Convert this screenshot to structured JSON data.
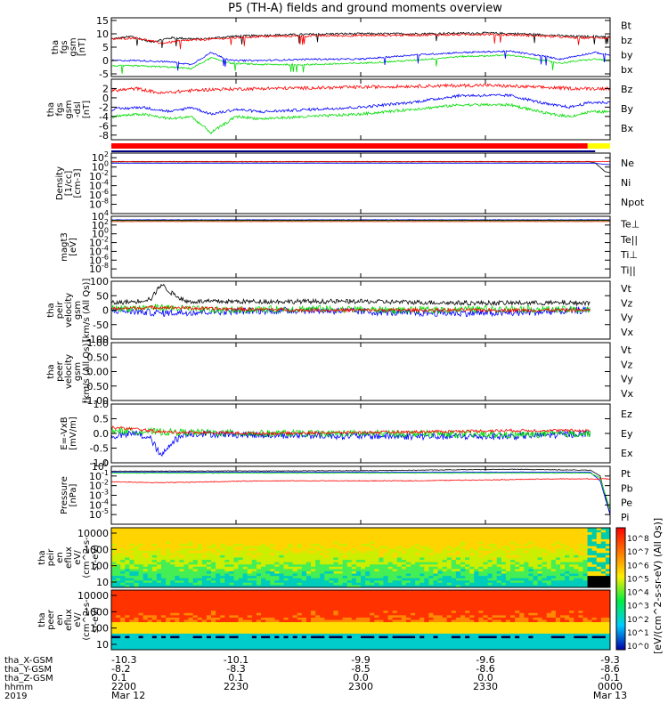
{
  "title": "P5 (TH-A) fields and ground moments overview",
  "colors": {
    "black": "#000000",
    "red": "#ff0000",
    "green": "#00dd00",
    "blue": "#0000ff",
    "yellow": "#ffff00"
  },
  "chart_data": [
    {
      "id": "fgs",
      "type": "line",
      "ylabel": [
        "tha",
        "fgs",
        "gsm",
        "[nT]"
      ],
      "ylim": [
        -6,
        16
      ],
      "yticks": [
        -5,
        0,
        5,
        10,
        15
      ],
      "scale": "linear",
      "legend": [
        {
          "label": "Bt",
          "color": "#000000"
        },
        {
          "label": "bz",
          "color": "#ff0000"
        },
        {
          "label": "by",
          "color": "#00dd00"
        },
        {
          "label": "bx",
          "color": "#0000ff"
        }
      ],
      "series": [
        {
          "color": "#000000",
          "noise": 0.4,
          "x": [
            0,
            0.04,
            0.08,
            0.12,
            0.18,
            0.24,
            0.32,
            0.45,
            0.6,
            0.75,
            0.82,
            0.88,
            0.93,
            0.97,
            1
          ],
          "y": [
            8,
            9,
            7,
            8.5,
            8,
            9,
            9.5,
            10,
            10,
            10.3,
            10,
            9.5,
            9,
            9,
            9
          ]
        },
        {
          "color": "#ff0000",
          "noise": 0.4,
          "x": [
            0,
            0.05,
            0.1,
            0.15,
            0.2,
            0.3,
            0.45,
            0.6,
            0.75,
            0.82,
            0.88,
            0.93,
            0.97,
            1
          ],
          "y": [
            8,
            8.5,
            6.5,
            7.5,
            8,
            9,
            9.3,
            9.5,
            9.8,
            9.5,
            9,
            8.5,
            8.5,
            8.5
          ]
        },
        {
          "color": "#00dd00",
          "noise": 0.3,
          "x": [
            0,
            0.05,
            0.12,
            0.16,
            0.2,
            0.24,
            0.3,
            0.4,
            0.5,
            0.6,
            0.7,
            0.8,
            0.87,
            0.9,
            0.94,
            0.97,
            1
          ],
          "y": [
            -2,
            -2,
            -2.5,
            -3,
            1,
            -1,
            -1.5,
            -1.5,
            -1,
            0,
            1.5,
            2,
            0,
            -1,
            0,
            0.5,
            0
          ]
        },
        {
          "color": "#0000ff",
          "noise": 0.3,
          "x": [
            0,
            0.05,
            0.12,
            0.16,
            0.2,
            0.24,
            0.3,
            0.4,
            0.5,
            0.6,
            0.7,
            0.8,
            0.87,
            0.9,
            0.94,
            0.97,
            1
          ],
          "y": [
            0,
            0,
            -0.5,
            -1.5,
            3,
            0,
            0,
            0.5,
            0.5,
            2,
            3,
            3.5,
            1.5,
            0.5,
            2,
            3,
            2
          ]
        }
      ]
    },
    {
      "id": "fgs-gse",
      "type": "line",
      "ylabel": [
        "tha",
        "fgs",
        "gsm",
        "-dsl",
        "[nT]"
      ],
      "ylim": [
        -9,
        4
      ],
      "yticks": [
        -8,
        -6,
        -4,
        -2,
        0,
        2
      ],
      "scale": "linear",
      "legend": [
        {
          "label": "Bz",
          "color": "#ff0000"
        },
        {
          "label": "By",
          "color": "#00dd00"
        },
        {
          "label": "Bx",
          "color": "#0000ff"
        }
      ],
      "series": [
        {
          "color": "#ff0000",
          "noise": 0.35,
          "x": [
            0,
            0.05,
            0.1,
            0.15,
            0.2,
            0.3,
            0.45,
            0.6,
            0.75,
            0.85,
            0.93,
            1
          ],
          "y": [
            1.5,
            2,
            1,
            1.5,
            1.8,
            2,
            2.2,
            2.5,
            2.7,
            2.3,
            2,
            2
          ]
        },
        {
          "color": "#0000ff",
          "noise": 0.3,
          "x": [
            0,
            0.06,
            0.12,
            0.16,
            0.2,
            0.25,
            0.3,
            0.4,
            0.5,
            0.6,
            0.7,
            0.8,
            0.88,
            0.92,
            0.96,
            1
          ],
          "y": [
            -2.5,
            -2,
            -3,
            -2,
            -3.5,
            -2.5,
            -3,
            -2.5,
            -2,
            -1,
            0.5,
            0.5,
            -1.5,
            -2,
            -1,
            -1
          ]
        },
        {
          "color": "#00dd00",
          "noise": 0.3,
          "x": [
            0,
            0.06,
            0.12,
            0.16,
            0.2,
            0.25,
            0.3,
            0.4,
            0.5,
            0.6,
            0.7,
            0.8,
            0.88,
            0.92,
            0.96,
            1
          ],
          "y": [
            -4,
            -3.5,
            -4.5,
            -4,
            -7.5,
            -4,
            -4.5,
            -4,
            -3.5,
            -2.5,
            -1.5,
            -1.5,
            -3.5,
            -4,
            -3,
            -3
          ]
        }
      ]
    },
    {
      "id": "density",
      "type": "line",
      "ylabel": [
        "Density",
        "[1/cc]",
        "[cm-3]"
      ],
      "ylim": [
        -10,
        3
      ],
      "yticks": [
        -8,
        -6,
        -4,
        -2,
        0,
        2
      ],
      "tick_prefix": "10",
      "scale": "log",
      "legend": [
        {
          "label": "Ne",
          "color": "#ff0000"
        },
        {
          "label": "Ni",
          "color": "#000000"
        },
        {
          "label": "Npot",
          "color": "#0000ff"
        }
      ],
      "series": [
        {
          "color": "#0000ff",
          "noise": 0.03,
          "x": [
            0,
            0.97,
            1
          ],
          "y": [
            0.8,
            0.8,
            0.5
          ]
        },
        {
          "color": "#000000",
          "noise": 0.03,
          "x": [
            0,
            0.96,
            0.97,
            0.99,
            1
          ],
          "y": [
            1.1,
            1.1,
            0.9,
            -1,
            -1.2
          ]
        },
        {
          "color": "#ff0000",
          "noise": 0.03,
          "x": [
            0,
            0.96,
            1
          ],
          "y": [
            1.2,
            1.2,
            1.2
          ]
        }
      ]
    },
    {
      "id": "temperature",
      "type": "line",
      "ylabel": [
        "magt3",
        "[eV]"
      ],
      "ylim": [
        -10,
        4
      ],
      "yticks": [
        -8,
        -6,
        -4,
        -2,
        0,
        2,
        4
      ],
      "tick_prefix": "10",
      "scale": "log",
      "legend": [
        {
          "label": "Te⊥",
          "color": "#ff0000"
        },
        {
          "label": "Te||",
          "color": "#000000"
        },
        {
          "label": "Ti⊥",
          "color": "#0000ff"
        },
        {
          "label": "Ti||",
          "color": "#00dd00"
        }
      ],
      "series": [
        {
          "color": "#00dd00",
          "noise": 0.03,
          "x": [
            0,
            1
          ],
          "y": [
            3.0,
            3.0
          ]
        },
        {
          "color": "#0000ff",
          "noise": 0.03,
          "x": [
            0,
            1
          ],
          "y": [
            3.2,
            3.2
          ]
        },
        {
          "color": "#000000",
          "noise": 0.03,
          "x": [
            0,
            1
          ],
          "y": [
            3.1,
            3.1
          ]
        },
        {
          "color": "#ff0000",
          "noise": 0.03,
          "x": [
            0,
            1
          ],
          "y": [
            2.8,
            2.8
          ]
        }
      ]
    },
    {
      "id": "peir-velocity",
      "type": "line",
      "ylabel": [
        "tha",
        "peir",
        "velocity",
        "gsm",
        "[km/s (All Qs)]"
      ],
      "ylim": [
        -100,
        100
      ],
      "yticks": [
        -100,
        -50,
        0,
        50,
        100
      ],
      "scale": "linear",
      "legend": [
        {
          "label": "Vt",
          "color": "#000000"
        },
        {
          "label": "Vz",
          "color": "#ff0000"
        },
        {
          "label": "Vy",
          "color": "#00dd00"
        },
        {
          "label": "Vx",
          "color": "#0000ff"
        }
      ],
      "series": [
        {
          "color": "#0000ff",
          "noise": 12,
          "x": [
            0,
            0.1,
            0.2,
            0.4,
            0.6,
            0.8,
            0.96
          ],
          "y": [
            0,
            -10,
            -5,
            0,
            -10,
            -10,
            0
          ]
        },
        {
          "color": "#00dd00",
          "noise": 12,
          "x": [
            0,
            0.1,
            0.2,
            0.4,
            0.6,
            0.8,
            0.96
          ],
          "y": [
            5,
            10,
            0,
            5,
            0,
            5,
            0
          ]
        },
        {
          "color": "#ff0000",
          "noise": 6,
          "x": [
            0,
            0.1,
            0.2,
            0.4,
            0.6,
            0.8,
            0.96
          ],
          "y": [
            5,
            10,
            5,
            0,
            0,
            0,
            0
          ]
        },
        {
          "color": "#000000",
          "noise": 8,
          "x": [
            0,
            0.05,
            0.08,
            0.1,
            0.12,
            0.15,
            0.3,
            0.5,
            0.7,
            0.9,
            0.96
          ],
          "y": [
            25,
            30,
            40,
            90,
            60,
            30,
            30,
            30,
            25,
            25,
            25
          ]
        }
      ]
    },
    {
      "id": "peer-velocity",
      "type": "line",
      "ylabel": [
        "tha",
        "peer",
        "velocity",
        "gsm",
        "[km/s (All Qs)]"
      ],
      "ylim": [
        -1,
        1
      ],
      "yticks": [
        -1,
        -0.5,
        0,
        0.5,
        1
      ],
      "tick_format": "fixed2",
      "scale": "linear",
      "legend": [
        {
          "label": "Vt",
          "color": "#000000"
        },
        {
          "label": "Vz",
          "color": "#ff0000"
        },
        {
          "label": "Vy",
          "color": "#00dd00"
        },
        {
          "label": "Vx",
          "color": "#0000ff"
        }
      ],
      "series": []
    },
    {
      "id": "efield",
      "type": "line",
      "ylabel": [
        "E=-VxB",
        "[mV/m]"
      ],
      "ylim": [
        -1,
        1
      ],
      "yticks": [
        -1,
        -0.5,
        0,
        0.5,
        1
      ],
      "tick_format": "fixed1",
      "scale": "linear",
      "legend": [
        {
          "label": "Ez",
          "color": "#ff0000"
        },
        {
          "label": "Ey",
          "color": "#00dd00"
        },
        {
          "label": "Ex",
          "color": "#0000ff"
        }
      ],
      "series": [
        {
          "color": "#0000ff",
          "noise": 0.12,
          "x": [
            0,
            0.05,
            0.08,
            0.1,
            0.12,
            0.15,
            0.3,
            0.6,
            0.8,
            0.96
          ],
          "y": [
            -0.1,
            0,
            -0.2,
            -0.8,
            -0.3,
            0,
            -0.05,
            -0.1,
            -0.1,
            0
          ]
        },
        {
          "color": "#00dd00",
          "noise": 0.12,
          "x": [
            0,
            0.1,
            0.3,
            0.6,
            0.8,
            0.96
          ],
          "y": [
            0.1,
            0.05,
            0,
            0,
            -0.05,
            0
          ]
        },
        {
          "color": "#ff0000",
          "noise": 0.05,
          "x": [
            0,
            0.05,
            0.1,
            0.3,
            0.6,
            0.8,
            0.96
          ],
          "y": [
            0.2,
            0.15,
            0.05,
            0,
            0.05,
            0.1,
            0.1
          ]
        }
      ]
    },
    {
      "id": "pressure",
      "type": "line",
      "ylabel": [
        "Pressure",
        "[nPa]"
      ],
      "ylim": [
        -6,
        0
      ],
      "yticks": [
        -5,
        -4,
        -3,
        -2,
        -1,
        0
      ],
      "tick_prefix": "10",
      "scale": "log",
      "legend": [
        {
          "label": "Pt",
          "color": "#000000"
        },
        {
          "label": "Pb",
          "color": "#ff0000"
        },
        {
          "label": "Pe",
          "color": "#00dd00"
        },
        {
          "label": "Pi",
          "color": "#0000ff"
        }
      ],
      "series": [
        {
          "color": "#000000",
          "noise": 0.03,
          "x": [
            0,
            0.5,
            0.8,
            0.96,
            0.98,
            1
          ],
          "y": [
            -0.5,
            -0.45,
            -0.3,
            -0.4,
            -1,
            -5
          ]
        },
        {
          "color": "#0000ff",
          "noise": 0.03,
          "x": [
            0,
            0.96,
            0.98,
            1
          ],
          "y": [
            -0.6,
            -0.6,
            -1.5,
            -5
          ]
        },
        {
          "color": "#00dd00",
          "noise": 0.03,
          "x": [
            0,
            0.96,
            0.98,
            1
          ],
          "y": [
            -0.7,
            -0.7,
            -1.2,
            -4.5
          ]
        },
        {
          "color": "#ff0000",
          "noise": 0.04,
          "x": [
            0,
            0.1,
            0.3,
            0.6,
            0.9,
            1
          ],
          "y": [
            -1.6,
            -1.7,
            -1.5,
            -1.5,
            -1.3,
            -1.3
          ]
        }
      ]
    },
    {
      "id": "peir-spectrogram",
      "type": "heatmap",
      "ylabel": [
        "tha",
        "peir",
        "en",
        "eflux",
        "eV/",
        "(cm^2-s-",
        "sr-eV)"
      ],
      "yticks": [
        "10",
        "100",
        "1000",
        "10000"
      ]
    },
    {
      "id": "peer-spectrogram",
      "type": "heatmap",
      "ylabel": [
        "tha",
        "peer",
        "en",
        "eflux",
        "eV/",
        "(cm^2-s-",
        "sr-eV)"
      ],
      "yticks": [
        "10",
        "100",
        "1000",
        "10000"
      ]
    }
  ],
  "colorbar": {
    "label": "[eV/(cm^2-s-sr-eV) (All Qs)]",
    "ticks": [
      "10^8",
      "10^7",
      "10^6",
      "10^5",
      "10^4",
      "10^3",
      "10^2",
      "10^1",
      "10^0"
    ]
  },
  "xaxis": {
    "ticks": [
      {
        "frac": 0,
        "rows": [
          "-10.3",
          "-8.2",
          "0.1",
          "2200"
        ],
        "date": "Mar 12"
      },
      {
        "frac": 0.25,
        "rows": [
          "-10.1",
          "-8.3",
          "0.1",
          "2230"
        ],
        "date": ""
      },
      {
        "frac": 0.5,
        "rows": [
          "-9.9",
          "-8.5",
          "0.0",
          "2300"
        ],
        "date": ""
      },
      {
        "frac": 0.75,
        "rows": [
          "-9.6",
          "-8.6",
          "0.0",
          "2330"
        ],
        "date": ""
      },
      {
        "frac": 1,
        "rows": [
          "-9.3",
          "-8.6",
          "-0.1",
          "0000"
        ],
        "date": "Mar 13"
      }
    ],
    "row_labels": [
      "tha_X-GSM",
      "tha_Y-GSM",
      "tha_Z-GSM",
      "hhmm",
      "2019"
    ]
  }
}
